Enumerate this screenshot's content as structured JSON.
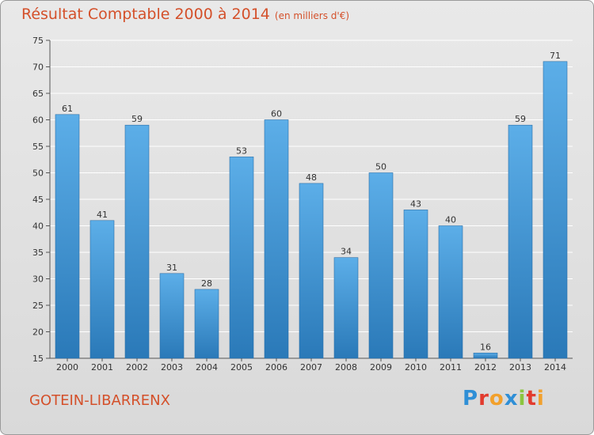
{
  "header": {
    "title": "Résultat Comptable 2000 à 2014",
    "subtitle": "(en milliers d'€)"
  },
  "footer": {
    "commune": "GOTEIN-LIBARRENX",
    "logo_text": "Proxiti",
    "logo_letters": [
      {
        "ch": "P",
        "color": "#2f8fd6"
      },
      {
        "ch": "r",
        "color": "#e23b2e"
      },
      {
        "ch": "o",
        "color": "#f2a02b"
      },
      {
        "ch": "x",
        "color": "#2f8fd6"
      },
      {
        "ch": "i",
        "color": "#8bc53f"
      },
      {
        "ch": "t",
        "color": "#e23b2e"
      },
      {
        "ch": "i",
        "color": "#f2a02b"
      }
    ]
  },
  "colors": {
    "title": "#d4502a",
    "bar_top": "#5caee8",
    "bar_bottom": "#2a79b8",
    "grid": "#ffffff"
  },
  "chart_data": {
    "type": "bar",
    "title": "Résultat Comptable 2000 à 2014",
    "subtitle": "(en milliers d'€)",
    "xlabel": "",
    "ylabel": "",
    "categories": [
      "2000",
      "2001",
      "2002",
      "2003",
      "2004",
      "2005",
      "2006",
      "2007",
      "2008",
      "2009",
      "2010",
      "2011",
      "2012",
      "2013",
      "2014"
    ],
    "values": [
      61,
      41,
      59,
      31,
      28,
      53,
      60,
      48,
      34,
      50,
      43,
      40,
      16,
      59,
      71
    ],
    "ylim": [
      15,
      75
    ],
    "yticks": [
      15,
      20,
      25,
      30,
      35,
      40,
      45,
      50,
      55,
      60,
      65,
      70,
      75
    ],
    "grid": true
  }
}
